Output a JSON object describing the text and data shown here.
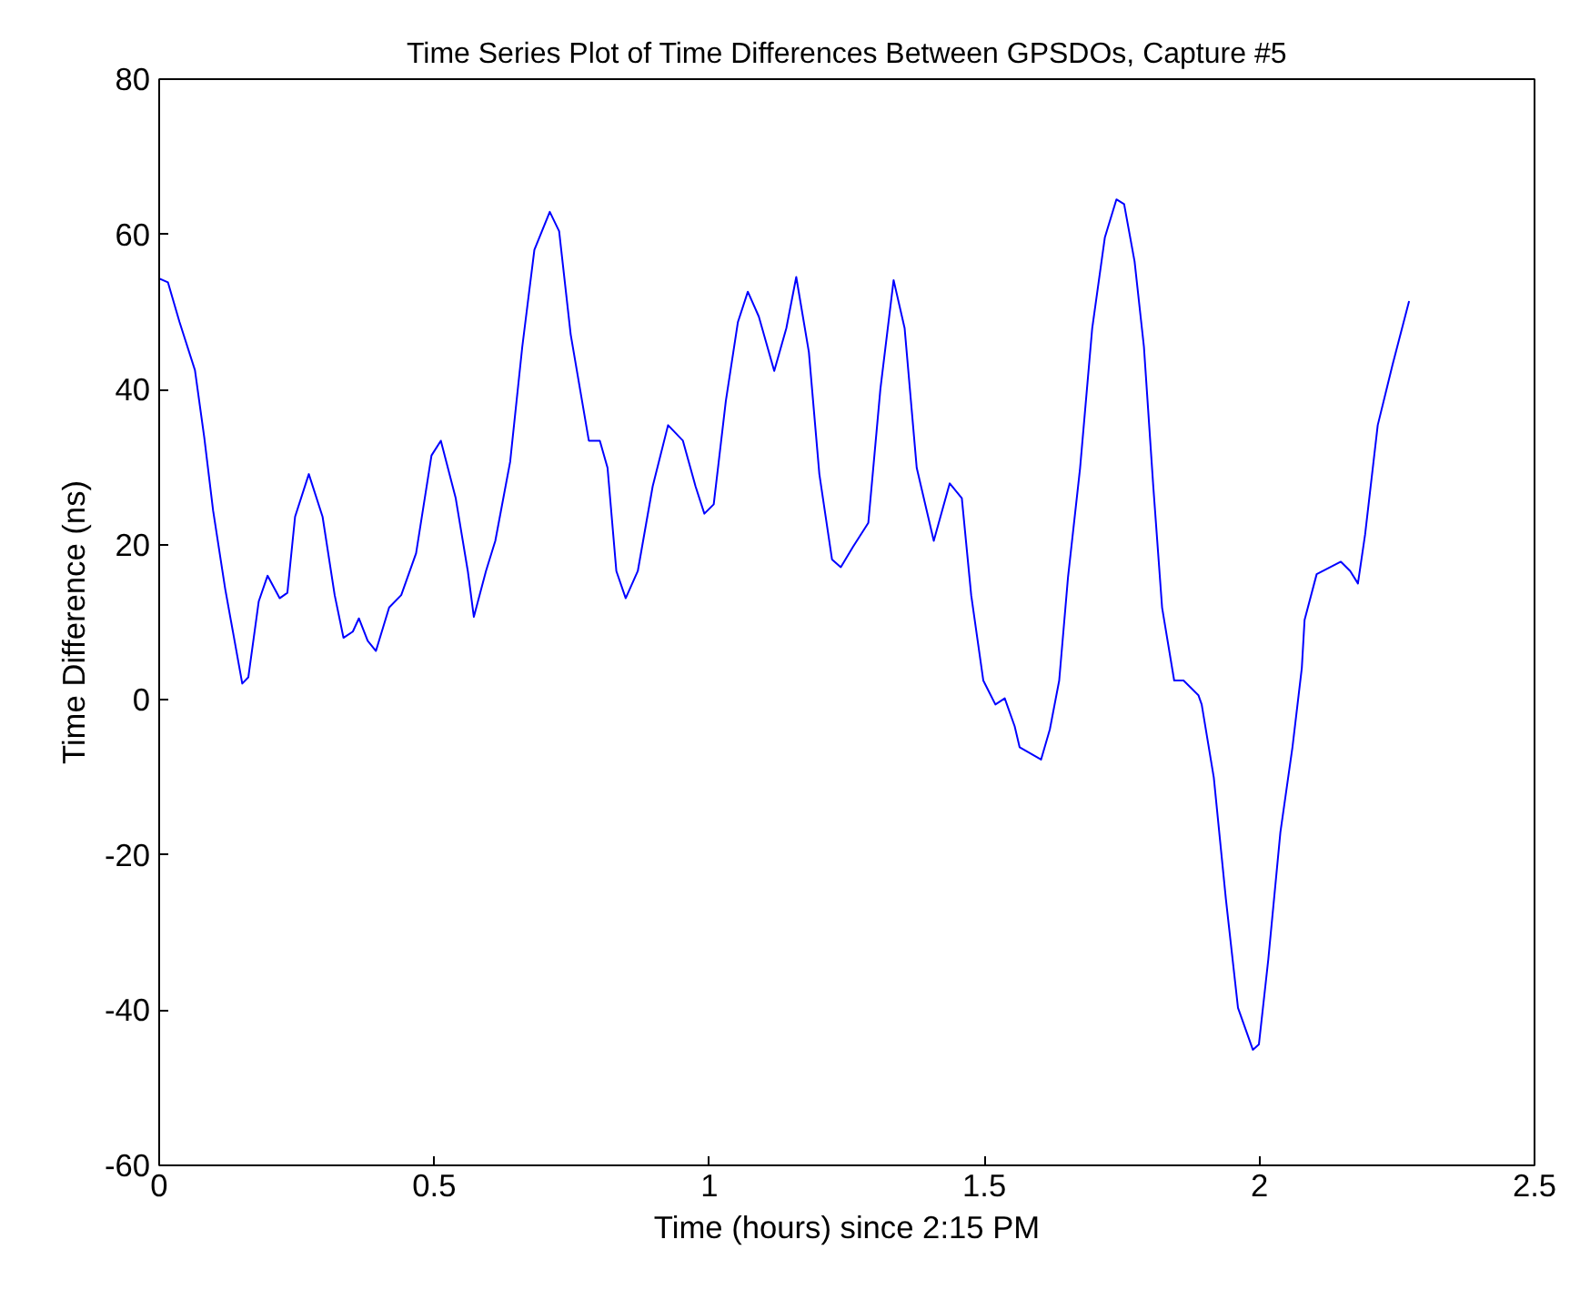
{
  "chart_data": {
    "type": "line",
    "title": "Time Series Plot of Time Differences Between GPSDOs, Capture #5",
    "xlabel": "Time (hours) since 2:15 PM",
    "ylabel": "Time Difference (ns)",
    "xlim": [
      0,
      2.5
    ],
    "ylim": [
      -60,
      80
    ],
    "xticks": [
      0,
      0.5,
      1,
      1.5,
      2,
      2.5
    ],
    "yticks": [
      -60,
      -40,
      -20,
      0,
      20,
      40,
      60,
      80
    ],
    "grid": false,
    "marker": "none",
    "line_style": "solid",
    "series": [
      {
        "color": "#0000ff",
        "x": [
          0,
          0.016,
          0.037,
          0.065,
          0.082,
          0.098,
          0.12,
          0.151,
          0.162,
          0.181,
          0.197,
          0.219,
          0.233,
          0.247,
          0.272,
          0.297,
          0.319,
          0.335,
          0.352,
          0.363,
          0.379,
          0.394,
          0.418,
          0.44,
          0.467,
          0.495,
          0.512,
          0.539,
          0.561,
          0.572,
          0.594,
          0.611,
          0.638,
          0.66,
          0.682,
          0.71,
          0.727,
          0.748,
          0.781,
          0.801,
          0.815,
          0.831,
          0.848,
          0.87,
          0.897,
          0.925,
          0.952,
          0.975,
          0.991,
          1.008,
          1.03,
          1.052,
          1.07,
          1.09,
          1.118,
          1.14,
          1.158,
          1.181,
          1.2,
          1.223,
          1.239,
          1.261,
          1.289,
          1.311,
          1.335,
          1.355,
          1.377,
          1.408,
          1.437,
          1.459,
          1.476,
          1.498,
          1.52,
          1.537,
          1.555,
          1.564,
          1.603,
          1.619,
          1.636,
          1.652,
          1.674,
          1.696,
          1.719,
          1.74,
          1.754,
          1.773,
          1.79,
          1.807,
          1.823,
          1.845,
          1.862,
          1.889,
          1.895,
          1.917,
          1.939,
          1.961,
          1.988,
          1.999,
          2.016,
          2.038,
          2.06,
          2.077,
          2.082,
          2.104,
          2.148,
          2.165,
          2.179,
          2.192,
          2.215,
          2.242,
          2.272
        ],
        "values": [
          54.3,
          53.8,
          48.7,
          42.5,
          33.8,
          24.4,
          14.3,
          2.1,
          2.9,
          12.7,
          16,
          13.1,
          13.8,
          23.6,
          29.1,
          23.6,
          13.5,
          8,
          8.8,
          10.5,
          7.6,
          6.3,
          11.9,
          13.5,
          18.9,
          31.5,
          33.4,
          26,
          16.6,
          10.7,
          16.6,
          20.5,
          30.7,
          45.5,
          58,
          62.9,
          60.4,
          47.1,
          33.4,
          33.4,
          29.9,
          16.6,
          13.1,
          16.6,
          27.5,
          35.4,
          33.4,
          27.5,
          24,
          25.2,
          38.5,
          48.7,
          52.6,
          49.4,
          42.4,
          47.9,
          54.5,
          44.8,
          29.1,
          18.1,
          17.1,
          19.7,
          22.8,
          40.1,
          54.1,
          47.9,
          29.9,
          20.5,
          27.9,
          26,
          13.5,
          2.5,
          -0.6,
          0.2,
          -3.4,
          -6.1,
          -7.7,
          -3.8,
          2.5,
          15.8,
          29.9,
          47.9,
          59.6,
          64.5,
          63.9,
          56.5,
          45.5,
          27.5,
          11.9,
          2.5,
          2.5,
          0.6,
          -0.6,
          -10,
          -25.7,
          -39.7,
          -45.1,
          -44.4,
          -33.5,
          -17.1,
          -6.1,
          4.1,
          10.3,
          16.2,
          17.8,
          16.6,
          15,
          21.3,
          35.4,
          43.2,
          51.4
        ]
      }
    ]
  }
}
